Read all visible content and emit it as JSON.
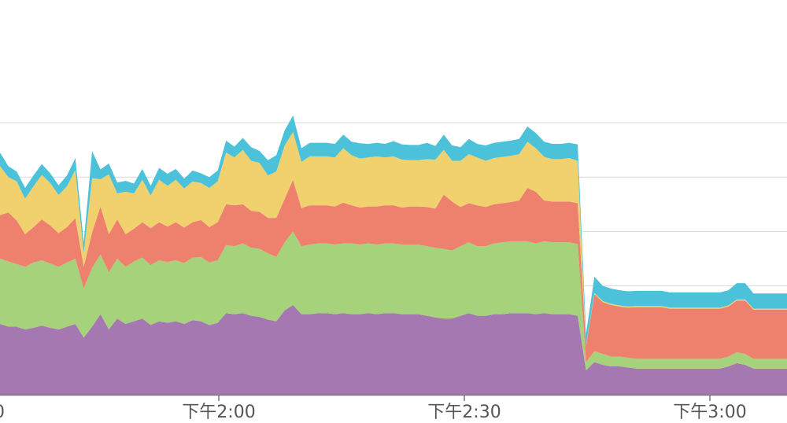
{
  "chart_data": {
    "type": "area",
    "stacked": true,
    "grid": true,
    "legend": "none",
    "title": "",
    "xlabel": "",
    "ylabel": "",
    "x_tick_labels": [
      "0",
      "下午2:00",
      "下午2:30",
      "下午3:00"
    ],
    "ylim": [
      0,
      600
    ],
    "series": [
      {
        "color": "#a678b2",
        "values": [
          130,
          125,
          125,
          120,
          123,
          127,
          123,
          120,
          125,
          130,
          105,
          125,
          148,
          120,
          140,
          130,
          135,
          140,
          128,
          135,
          132,
          135,
          130,
          137,
          135,
          128,
          132,
          150,
          148,
          150,
          145,
          143,
          138,
          135,
          155,
          165,
          148,
          148,
          150,
          150,
          148,
          150,
          148,
          148,
          150,
          148,
          150,
          150,
          148,
          148,
          148,
          145,
          142,
          140,
          140,
          145,
          150,
          145,
          145,
          148,
          148,
          150,
          150,
          150,
          148,
          150,
          148,
          148,
          148,
          145,
          45,
          60,
          55,
          52,
          52,
          50,
          48,
          48,
          48,
          48,
          48,
          48,
          48,
          48,
          48,
          48,
          48,
          52,
          58,
          55,
          48,
          48,
          48,
          48,
          48
        ]
      },
      {
        "color": "#a5d27a",
        "values": [
          120,
          120,
          115,
          115,
          120,
          120,
          118,
          115,
          118,
          120,
          90,
          108,
          110,
          105,
          110,
          105,
          110,
          112,
          110,
          112,
          112,
          112,
          112,
          115,
          118,
          115,
          115,
          125,
          125,
          128,
          125,
          125,
          122,
          118,
          125,
          135,
          125,
          128,
          128,
          128,
          128,
          128,
          130,
          128,
          128,
          128,
          128,
          128,
          128,
          128,
          128,
          128,
          128,
          128,
          125,
          128,
          130,
          128,
          128,
          130,
          132,
          132,
          132,
          132,
          130,
          132,
          132,
          132,
          132,
          132,
          15,
          20,
          20,
          18,
          18,
          18,
          18,
          18,
          18,
          18,
          18,
          18,
          18,
          18,
          18,
          18,
          18,
          18,
          20,
          20,
          18,
          18,
          18,
          18,
          18
        ]
      },
      {
        "color": "#ee816d",
        "values": [
          80,
          90,
          80,
          60,
          65,
          75,
          70,
          62,
          65,
          75,
          40,
          65,
          88,
          70,
          72,
          60,
          60,
          65,
          68,
          70,
          65,
          70,
          65,
          65,
          68,
          65,
          70,
          75,
          75,
          72,
          68,
          68,
          65,
          72,
          80,
          95,
          70,
          72,
          70,
          70,
          70,
          75,
          70,
          68,
          68,
          70,
          70,
          70,
          68,
          70,
          70,
          72,
          72,
          100,
          90,
          72,
          72,
          75,
          72,
          72,
          72,
          72,
          75,
          98,
          95,
          75,
          75,
          75,
          75,
          75,
          30,
          105,
          95,
          95,
          92,
          92,
          95,
          95,
          95,
          95,
          92,
          92,
          92,
          92,
          92,
          92,
          92,
          92,
          95,
          98,
          90,
          90,
          90,
          90,
          90
        ]
      },
      {
        "color": "#f1d16e",
        "values": [
          90,
          65,
          72,
          65,
          75,
          82,
          78,
          70,
          75,
          88,
          25,
          100,
          50,
          110,
          48,
          78,
          65,
          78,
          60,
          78,
          75,
          78,
          72,
          75,
          68,
          72,
          75,
          95,
          88,
          100,
          92,
          90,
          78,
          85,
          98,
          88,
          85,
          90,
          90,
          90,
          90,
          100,
          92,
          90,
          90,
          92,
          88,
          90,
          88,
          85,
          85,
          88,
          90,
          82,
          75,
          85,
          90,
          88,
          85,
          85,
          85,
          85,
          85,
          85,
          80,
          80,
          78,
          78,
          80,
          78,
          2,
          2,
          2,
          2,
          2,
          2,
          2,
          2,
          2,
          2,
          2,
          2,
          2,
          2,
          2,
          2,
          2,
          2,
          2,
          2,
          2,
          2,
          2,
          2,
          2
        ]
      },
      {
        "color": "#4bc2da",
        "values": [
          25,
          20,
          18,
          20,
          20,
          20,
          18,
          18,
          20,
          22,
          20,
          50,
          18,
          20,
          20,
          20,
          18,
          20,
          18,
          22,
          22,
          20,
          18,
          20,
          18,
          20,
          20,
          22,
          20,
          22,
          25,
          22,
          28,
          30,
          28,
          30,
          25,
          25,
          25,
          25,
          25,
          25,
          25,
          28,
          25,
          25,
          25,
          28,
          28,
          28,
          28,
          30,
          25,
          28,
          28,
          25,
          28,
          25,
          28,
          28,
          28,
          28,
          28,
          28,
          28,
          28,
          28,
          28,
          28,
          30,
          20,
          30,
          28,
          28,
          28,
          28,
          28,
          28,
          28,
          28,
          28,
          28,
          28,
          28,
          28,
          28,
          28,
          28,
          30,
          30,
          28,
          28,
          28,
          28,
          28
        ]
      }
    ]
  }
}
